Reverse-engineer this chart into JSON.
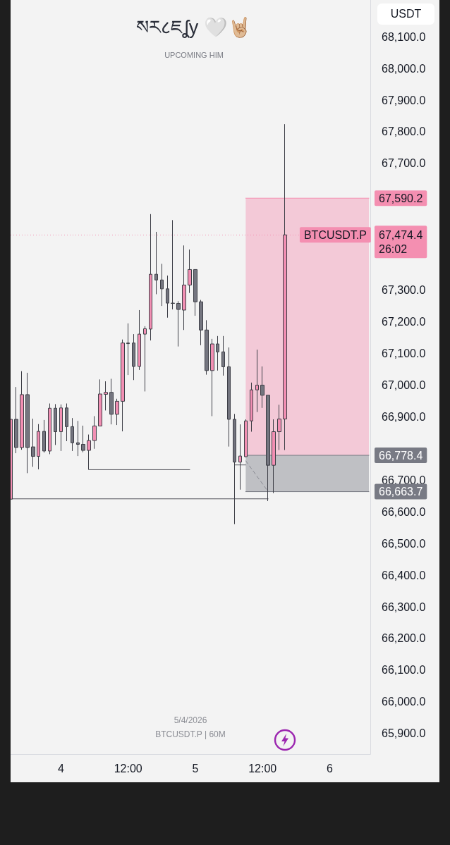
{
  "chart_data": {
    "type": "candlestick",
    "title": "སར८ཇʆy 🤍🤘🏼",
    "subtitle": "UPCOMING HIM",
    "ylabel": "USDT",
    "x": [
      "2026-04-03T15:00",
      "2026-04-03T16:00",
      "2026-04-03T17:00",
      "2026-04-03T18:00",
      "2026-04-03T19:00",
      "2026-04-03T20:00",
      "2026-04-03T21:00",
      "2026-04-03T22:00",
      "2026-04-03T23:00",
      "2026-04-04T00:00",
      "2026-04-04T01:00",
      "2026-04-04T02:00",
      "2026-04-04T03:00",
      "2026-04-04T04:00",
      "2026-04-04T05:00",
      "2026-04-04T06:00",
      "2026-04-04T07:00",
      "2026-04-04T08:00",
      "2026-04-04T09:00",
      "2026-04-04T10:00",
      "2026-04-04T11:00",
      "2026-04-04T12:00",
      "2026-04-04T13:00",
      "2026-04-04T14:00",
      "2026-04-04T15:00",
      "2026-04-04T16:00",
      "2026-04-04T17:00",
      "2026-04-04T18:00",
      "2026-04-04T19:00",
      "2026-04-04T20:00",
      "2026-04-04T21:00",
      "2026-04-04T22:00",
      "2026-04-04T23:00",
      "2026-04-05T00:00",
      "2026-04-05T01:00",
      "2026-04-05T02:00",
      "2026-04-05T03:00",
      "2026-04-05T04:00",
      "2026-04-05T05:00",
      "2026-04-05T06:00",
      "2026-04-05T07:00",
      "2026-04-05T08:00",
      "2026-04-05T09:00",
      "2026-04-05T10:00",
      "2026-04-05T11:00",
      "2026-04-05T12:00",
      "2026-04-05T13:00",
      "2026-04-05T14:00",
      "2026-04-05T15:00",
      "2026-04-05T16:00"
    ],
    "ohlc": [
      [
        66640,
        66892,
        66640,
        66892
      ],
      [
        66892,
        66994,
        66785,
        66803
      ],
      [
        66803,
        67044,
        66796,
        66970
      ],
      [
        66970,
        67039,
        66722,
        66803
      ],
      [
        66805,
        66894,
        66742,
        66775
      ],
      [
        66775,
        66877,
        66734,
        66854
      ],
      [
        66854,
        66890,
        66787,
        66792
      ],
      [
        66792,
        66942,
        66782,
        66927
      ],
      [
        66927,
        66940,
        66811,
        66853
      ],
      [
        66853,
        66939,
        66792,
        66928
      ],
      [
        66928,
        66942,
        66823,
        66869
      ],
      [
        66869,
        66896,
        66792,
        66818
      ],
      [
        66818,
        66887,
        66776,
        66813
      ],
      [
        66813,
        66872,
        66788,
        66794
      ],
      [
        66794,
        66844,
        66733,
        66825
      ],
      [
        66825,
        66902,
        66799,
        66871
      ],
      [
        66871,
        67018,
        66871,
        66972
      ],
      [
        66971,
        67012,
        66920,
        66977
      ],
      [
        66977,
        67020,
        66876,
        66908
      ],
      [
        66908,
        66957,
        66874,
        66949
      ],
      [
        66949,
        67144,
        66854,
        67133
      ],
      [
        67133,
        67195,
        67032,
        67131
      ],
      [
        67133,
        67161,
        67016,
        67059
      ],
      [
        67059,
        67237,
        67048,
        67161
      ],
      [
        67161,
        67186,
        66980,
        67178
      ],
      [
        67177,
        67540,
        67141,
        67350
      ],
      [
        67350,
        67484,
        67287,
        67332
      ],
      [
        67332,
        67383,
        67250,
        67304
      ],
      [
        67304,
        67346,
        67213,
        67259
      ],
      [
        67259,
        67521,
        67239,
        67258
      ],
      [
        67258,
        67265,
        67122,
        67239
      ],
      [
        67237,
        67441,
        67174,
        67316
      ],
      [
        67316,
        67428,
        67291,
        67365
      ],
      [
        67365,
        67365,
        67219,
        67263
      ],
      [
        67263,
        67269,
        67126,
        67174
      ],
      [
        67174,
        67205,
        67033,
        67046
      ],
      [
        67046,
        67146,
        66902,
        67130
      ],
      [
        67130,
        67155,
        67046,
        67105
      ],
      [
        67105,
        67155,
        67030,
        67058
      ],
      [
        67058,
        67119,
        66806,
        66892
      ],
      [
        66892,
        66909,
        66561,
        66757
      ],
      [
        66757,
        66876,
        66670,
        66776
      ],
      [
        66774,
        66892,
        66772,
        66887
      ],
      [
        66887,
        67008,
        66853,
        66985
      ],
      [
        66985,
        67112,
        66915,
        67000
      ],
      [
        67000,
        67059,
        66928,
        66968
      ],
      [
        66968,
        66968,
        66634,
        66747
      ],
      [
        66747,
        66892,
        66659,
        66853
      ],
      [
        66853,
        66938,
        66795,
        66893
      ],
      [
        66893,
        67824,
        66795,
        67474.4
      ]
    ],
    "colors": [
      "#f28fb3",
      "#74757f",
      "#f28fb3",
      "#74757f",
      "#74757f",
      "#f28fb3",
      "#74757f",
      "#f28fb3",
      "#74757f",
      "#f28fb3",
      "#74757f",
      "#74757f",
      "#74757f",
      "#74757f",
      "#f28fb3",
      "#f28fb3",
      "#f28fb3",
      "#f28fb3",
      "#74757f",
      "#f28fb3",
      "#f28fb3",
      "#74757f",
      "#74757f",
      "#f28fb3",
      "#f28fb3",
      "#f28fb3",
      "#74757f",
      "#74757f",
      "#74757f",
      "#74757f",
      "#74757f",
      "#f28fb3",
      "#f28fb3",
      "#74757f",
      "#74757f",
      "#74757f",
      "#f28fb3",
      "#74757f",
      "#74757f",
      "#74757f",
      "#74757f",
      "#f28fb3",
      "#f28fb3",
      "#f28fb3",
      "#f28fb3",
      "#74757f",
      "#74757f",
      "#f28fb3",
      "#f28fb3",
      "#f28fb3"
    ],
    "series": [
      {
        "type": "line",
        "x": [
          "2026-04-04T05:00",
          "2026-04-04T23:00"
        ],
        "values": [
          66733,
          66733
        ],
        "color": "#55565e"
      },
      {
        "type": "line",
        "x": [
          "2026-04-03T15:00",
          "2026-04-05T13:00"
        ],
        "values": [
          66641,
          66641
        ],
        "color": "#55565e"
      },
      {
        "type": "line",
        "x": [
          "2026-04-05T07:00",
          "2026-04-05T09:00"
        ],
        "values": [
          66748,
          66748
        ],
        "color": "#55565e"
      },
      {
        "type": "line",
        "x": [
          "2026-04-05T09:00",
          "2026-04-06T07:00"
        ],
        "values": [
          67590.2,
          67590.2
        ],
        "lower": [
          66778.4,
          66778.4
        ],
        "upper": [
          67590.2,
          67590.2
        ],
        "color": "#f48fb1",
        "value_labels": [
          null,
          "67,590.2"
        ]
      },
      {
        "type": "line",
        "x": [
          "2026-04-05T09:00",
          "2026-04-06T07:00"
        ],
        "values": [
          66778.4,
          66778.4
        ],
        "lower": [
          66663.7,
          66663.7
        ],
        "upper": [
          66778.4,
          66778.4
        ],
        "color": "#787a84",
        "value_labels": [
          null,
          "66,778.4"
        ]
      },
      {
        "type": "line",
        "x": [
          "2026-04-05T09:00",
          "2026-04-06T07:00"
        ],
        "values": [
          66663.7,
          66663.7
        ],
        "color": "#787a84",
        "value_labels": [
          null,
          "66,663.7"
        ]
      },
      {
        "type": "line",
        "x": [
          "2026-04-05T09:00",
          "2026-04-05T13:00"
        ],
        "values": [
          66761,
          66664
        ],
        "color": "#8a8b93",
        "line_style": "dashed"
      }
    ],
    "xlim": [
      "2026-04-03T15:00",
      "2026-04-06T07:15"
    ],
    "xticks": [
      {
        "value": "2026-04-04",
        "label": "4"
      },
      {
        "value": "2026-04-04T12:00",
        "label": "12:00"
      },
      {
        "value": "2026-04-05",
        "label": "5"
      },
      {
        "value": "2026-04-05T12:00",
        "label": "12:00"
      },
      {
        "value": "2026-04-06",
        "label": "6"
      }
    ],
    "ylim": [
      65835,
      68216
    ],
    "yticks": [
      {
        "value": 65900,
        "label": "65,900.0"
      },
      {
        "value": 66000,
        "label": "66,000.0"
      },
      {
        "value": 66100,
        "label": "66,100.0"
      },
      {
        "value": 66200,
        "label": "66,200.0"
      },
      {
        "value": 66300,
        "label": "66,300.0"
      },
      {
        "value": 66400,
        "label": "66,400.0"
      },
      {
        "value": 66500,
        "label": "66,500.0"
      },
      {
        "value": 66600,
        "label": "66,600.0"
      },
      {
        "value": 66700,
        "label": "66,700.0"
      },
      {
        "value": 66900,
        "label": "66,900.0"
      },
      {
        "value": 67000,
        "label": "67,000.0"
      },
      {
        "value": 67100,
        "label": "67,100.0"
      },
      {
        "value": 67200,
        "label": "67,200.0"
      },
      {
        "value": 67300,
        "label": "67,300.0"
      },
      {
        "value": 67700,
        "label": "67,700.0"
      },
      {
        "value": 67800,
        "label": "67,800.0"
      },
      {
        "value": 67900,
        "label": "67,900.0"
      },
      {
        "value": 68000,
        "label": "68,000.0"
      },
      {
        "value": 68100,
        "label": "68,100.0"
      }
    ],
    "ref_lines": [
      {
        "axis": "y",
        "value": 67474.4,
        "label": "67,474.4\n26:02",
        "color": "#f48fb1",
        "line_style": "dotted"
      }
    ],
    "annotations": [
      "5/4/2026",
      "BTCUSDT.P | 60M",
      {
        "text": "BTCUSDT.P",
        "x": "2026-04-06T01:00",
        "y": 67474.4
      }
    ]
  }
}
